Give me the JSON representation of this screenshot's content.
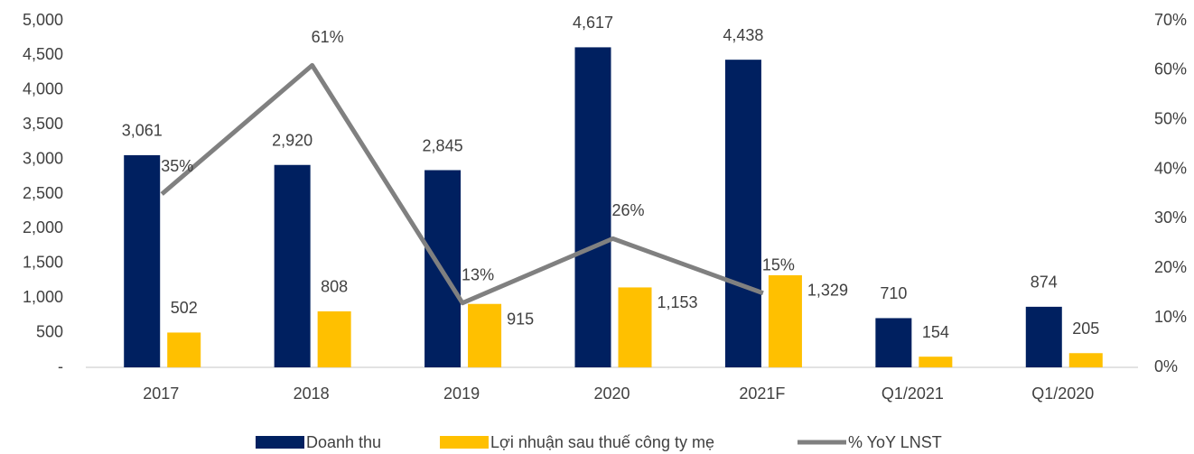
{
  "chart_data": {
    "type": "bar",
    "categories": [
      "2017",
      "2018",
      "2019",
      "2020",
      "2021F",
      "Q1/2021",
      "Q1/2020"
    ],
    "series": [
      {
        "name": "Doanh thu",
        "color": "#002060",
        "values": [
          3061,
          2920,
          2845,
          4617,
          4438,
          710,
          874
        ],
        "value_labels": [
          "3,061",
          "2,920",
          "2,845",
          "4,617",
          "4,438",
          "710",
          "874"
        ]
      },
      {
        "name": "Lợi nhuận sau thuế công ty mẹ",
        "color": "#ffc000",
        "values": [
          502,
          808,
          915,
          1153,
          1329,
          154,
          205
        ],
        "value_labels": [
          "502",
          "808",
          "915",
          "1,153",
          "1,329",
          "154",
          "205"
        ]
      },
      {
        "name": "% YoY LNST",
        "type": "line",
        "axis": "y2",
        "color": "#808080",
        "values": [
          35,
          61,
          13,
          26,
          15,
          null,
          null
        ],
        "value_labels": [
          "35%",
          "61%",
          "13%",
          "26%",
          "15%",
          null,
          null
        ]
      }
    ],
    "ylim": [
      0,
      5000
    ],
    "yticks": [
      {
        "value": 0,
        "label": "-"
      },
      {
        "value": 500,
        "label": "500"
      },
      {
        "value": 1000,
        "label": "1,000"
      },
      {
        "value": 1500,
        "label": "1,500"
      },
      {
        "value": 2000,
        "label": "2,000"
      },
      {
        "value": 2500,
        "label": "2,500"
      },
      {
        "value": 3000,
        "label": "3,000"
      },
      {
        "value": 3500,
        "label": "3,500"
      },
      {
        "value": 4000,
        "label": "4,000"
      },
      {
        "value": 4500,
        "label": "4,500"
      },
      {
        "value": 5000,
        "label": "5,000"
      }
    ],
    "y2lim": [
      0,
      70
    ],
    "y2ticks": [
      {
        "value": 0,
        "label": "0%"
      },
      {
        "value": 10,
        "label": "10%"
      },
      {
        "value": 20,
        "label": "20%"
      },
      {
        "value": 30,
        "label": "30%"
      },
      {
        "value": 40,
        "label": "40%"
      },
      {
        "value": 50,
        "label": "50%"
      },
      {
        "value": 60,
        "label": "60%"
      },
      {
        "value": 70,
        "label": "70%"
      }
    ],
    "legend": "bottom"
  }
}
